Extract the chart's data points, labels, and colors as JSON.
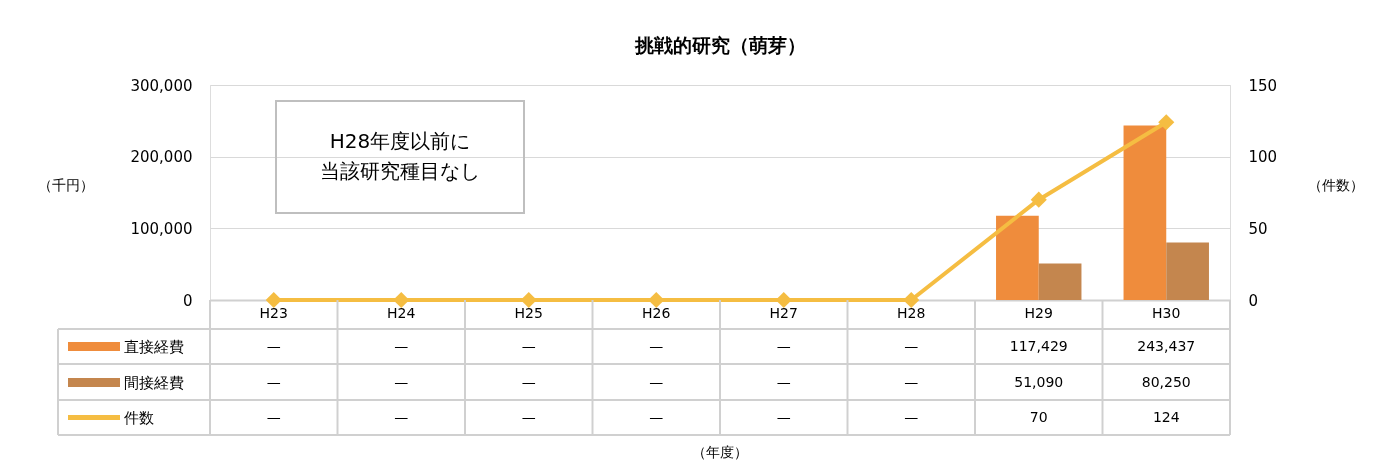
{
  "chart_data": {
    "type": "bar",
    "title": "挑戦的研究（萌芽）",
    "legend": "bottom left",
    "ylabel": "（千円）",
    "y2label": "（件数）",
    "categories": [
      "H23",
      "H24",
      "H25",
      "H26",
      "H27",
      "H28",
      "H29",
      "H30"
    ],
    "ylim": [
      0,
      300000
    ],
    "yticks": [
      0,
      {
        "value": 100000,
        "label": "100,000"
      },
      {
        "value": 200000,
        "label": "200,000"
      },
      {
        "value": 300000,
        "label": "300,000"
      }
    ],
    "y2lim": [
      0,
      150
    ],
    "y2ticks": [
      0,
      50,
      100,
      150
    ],
    "grid": "y",
    "marker": "diamond",
    "data_labels": true,
    "annotations": [
      "H28年度以前に",
      "当該研究種目なし",
      "（年度）"
    ],
    "series": [
      {
        "name": "直接経費",
        "color": "#ef8c3c",
        "values": [
          null,
          null,
          null,
          null,
          null,
          null,
          117429,
          243437
        ],
        "value_labels": [
          "—",
          "—",
          "—",
          "—",
          "—",
          "—",
          "117,429",
          "243,437"
        ]
      },
      {
        "name": "間接経費",
        "color": "#c4864e",
        "values": [
          null,
          null,
          null,
          null,
          null,
          null,
          51090,
          80250
        ],
        "value_labels": [
          "—",
          "—",
          "—",
          "—",
          "—",
          "—",
          "51,090",
          "80,250"
        ]
      },
      {
        "name": "件数",
        "type": "line",
        "axis": "y2",
        "color": "#f5bd42",
        "values": [
          0,
          0,
          0,
          0,
          0,
          0,
          70,
          124
        ],
        "value_labels": [
          "—",
          "—",
          "—",
          "—",
          "—",
          "—",
          "70",
          "124"
        ]
      }
    ]
  }
}
